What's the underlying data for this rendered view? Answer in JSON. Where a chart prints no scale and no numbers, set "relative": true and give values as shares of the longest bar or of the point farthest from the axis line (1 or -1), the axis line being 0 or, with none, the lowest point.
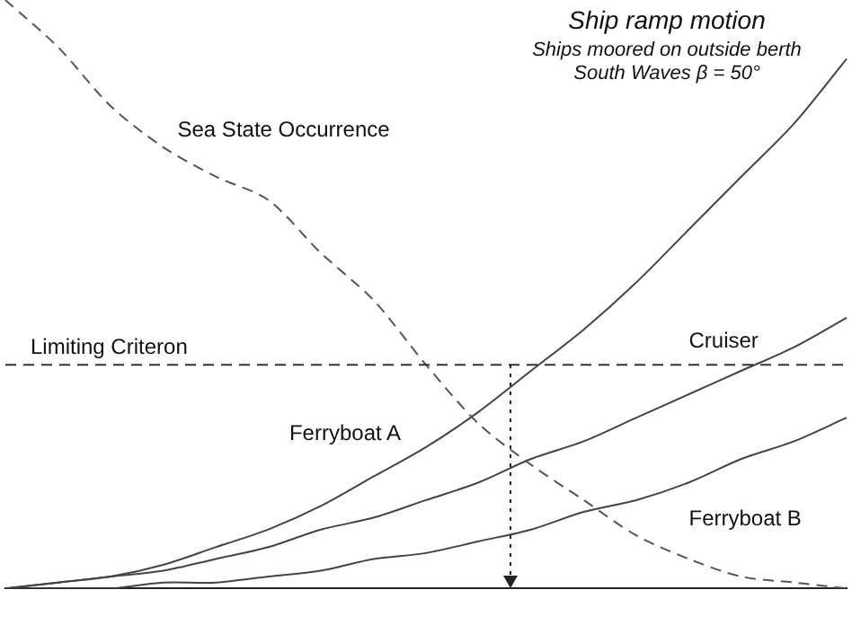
{
  "chart_data": {
    "type": "line",
    "title": "Ship ramp motion",
    "subtitle": "Ships moored on outside berth\nSouth Waves β = 50°",
    "relative": true,
    "legend": false,
    "grid": false,
    "categories": [
      null,
      null,
      null,
      null,
      null,
      null,
      null,
      null,
      null,
      null,
      null,
      null,
      null,
      null,
      null,
      null,
      null
    ],
    "series": [
      {
        "name": "Sea State Occurrence",
        "color": "#555555",
        "line_style": "dashed",
        "values": [
          1,
          0.92,
          0.82,
          0.75,
          0.7,
          0.66,
          0.57,
          0.49,
          0.38,
          0.28,
          0.21,
          0.15,
          0.09,
          0.05,
          0.02,
          0.01,
          0
        ]
      },
      {
        "name": "Ferryboat A",
        "color": "#444444",
        "values": [
          0,
          0.01,
          0.02,
          0.04,
          0.07,
          0.1,
          0.14,
          0.19,
          0.24,
          0.3,
          0.37,
          0.44,
          0.52,
          0.61,
          0.7,
          0.79,
          0.9
        ]
      },
      {
        "name": "Cruiser",
        "color": "#444444",
        "values": [
          0,
          0.01,
          0.02,
          0.03,
          0.05,
          0.07,
          0.1,
          0.12,
          0.15,
          0.18,
          0.22,
          0.25,
          0.29,
          0.33,
          0.37,
          0.41,
          0.46
        ]
      },
      {
        "name": "Ferryboat B",
        "color": "#444444",
        "values": [
          0,
          0,
          0,
          0.01,
          0.01,
          0.02,
          0.03,
          0.05,
          0.06,
          0.08,
          0.1,
          0.13,
          0.15,
          0.18,
          0.22,
          0.25,
          0.29
        ]
      }
    ],
    "ref_lines": [
      {
        "axis": "y",
        "value": 0.38,
        "label": "Limiting Criteron",
        "line_style": "dashed",
        "color": "#333333"
      }
    ]
  }
}
